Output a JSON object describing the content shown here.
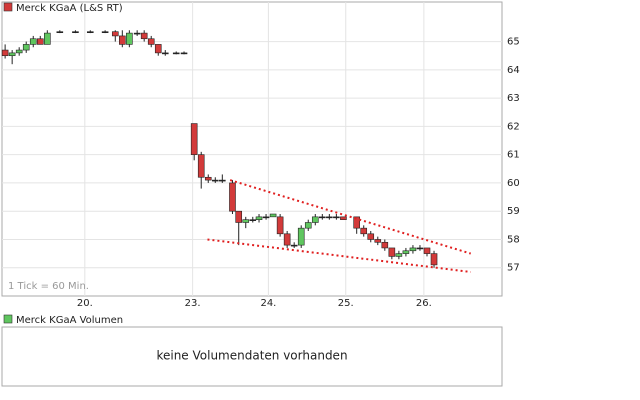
{
  "chart_data": [
    {
      "type": "candlestick",
      "legend": "Merck KGaA (L&S RT)",
      "legend_color": "#d23a3a",
      "note": "1 Tick = 60 Min.",
      "up_color": "#5fc65f",
      "down_color": "#d23a3a",
      "x": [
        0.4,
        1.3,
        2.2,
        3.1,
        4.0,
        4.9,
        5.8,
        7.4,
        9.4,
        11.3,
        13.2,
        14.5,
        15.4,
        16.3,
        17.3,
        18.2,
        19.1,
        20.0,
        20.9,
        22.3,
        23.3,
        24.6,
        25.5,
        26.4,
        27.3,
        28.2,
        29.5,
        30.3,
        31.2,
        32.1,
        32.9,
        33.8,
        34.7,
        35.6,
        36.5,
        37.4,
        38.3,
        39.2,
        40.1,
        41.0,
        41.9,
        42.8,
        43.7,
        45.4,
        46.3,
        47.2,
        48.1,
        49.0,
        49.9,
        50.8,
        51.7,
        52.6,
        53.5,
        54.4,
        55.3
      ],
      "open": [
        64.7,
        64.5,
        64.6,
        64.7,
        64.9,
        65.1,
        64.9,
        65.35,
        65.35,
        65.35,
        65.35,
        65.35,
        65.2,
        64.9,
        65.3,
        65.3,
        65.1,
        64.9,
        64.6,
        64.6,
        64.6,
        62.1,
        61.0,
        60.2,
        60.1,
        60.1,
        60.0,
        59.0,
        58.6,
        58.7,
        58.7,
        58.8,
        58.8,
        58.8,
        58.2,
        57.8,
        57.8,
        58.4,
        58.6,
        58.8,
        58.8,
        58.8,
        58.8,
        58.8,
        58.4,
        58.2,
        58.0,
        57.9,
        57.7,
        57.4,
        57.5,
        57.6,
        57.7,
        57.7,
        57.5
      ],
      "high": [
        64.9,
        64.7,
        64.8,
        65.0,
        65.2,
        65.2,
        65.4,
        65.4,
        65.4,
        65.4,
        65.4,
        65.4,
        65.4,
        65.4,
        65.4,
        65.4,
        65.2,
        64.9,
        64.7,
        64.65,
        64.65,
        62.1,
        61.1,
        60.3,
        60.2,
        60.3,
        60.1,
        59.0,
        58.8,
        58.8,
        58.9,
        58.9,
        58.9,
        58.9,
        58.3,
        57.9,
        58.5,
        58.7,
        58.9,
        58.9,
        58.9,
        58.9,
        58.8,
        58.8,
        58.5,
        58.3,
        58.1,
        58.0,
        57.7,
        57.6,
        57.7,
        57.8,
        57.8,
        57.7,
        57.6
      ],
      "low": [
        64.4,
        64.2,
        64.5,
        64.6,
        64.8,
        64.9,
        64.9,
        65.3,
        65.3,
        65.3,
        65.3,
        65.0,
        64.8,
        64.8,
        65.2,
        65.0,
        64.8,
        64.5,
        64.5,
        64.55,
        64.55,
        60.8,
        59.8,
        60.0,
        60.0,
        60.0,
        58.9,
        57.8,
        58.4,
        58.6,
        58.6,
        58.7,
        58.8,
        58.1,
        57.7,
        57.7,
        57.7,
        58.3,
        58.5,
        58.7,
        58.7,
        58.7,
        58.7,
        58.2,
        58.1,
        57.9,
        57.8,
        57.6,
        57.3,
        57.3,
        57.4,
        57.5,
        57.6,
        57.4,
        57.0
      ],
      "close": [
        64.5,
        64.6,
        64.7,
        64.9,
        65.1,
        64.9,
        65.3,
        65.35,
        65.35,
        65.35,
        65.35,
        65.2,
        64.9,
        65.3,
        65.3,
        65.1,
        64.9,
        64.6,
        64.6,
        64.6,
        64.6,
        61.0,
        60.2,
        60.1,
        60.1,
        60.1,
        59.0,
        58.6,
        58.7,
        58.7,
        58.8,
        58.8,
        58.9,
        58.2,
        57.8,
        57.8,
        58.4,
        58.6,
        58.8,
        58.8,
        58.8,
        58.8,
        58.7,
        58.4,
        58.2,
        58.0,
        57.9,
        57.7,
        57.4,
        57.5,
        57.6,
        57.7,
        57.7,
        57.5,
        57.1
      ],
      "trendlines": [
        {
          "color": "#e02020",
          "x": [
            29.2,
            60.0
          ],
          "y": [
            60.1,
            57.5
          ]
        },
        {
          "color": "#e02020",
          "x": [
            26.3,
            60.0
          ],
          "y": [
            58.0,
            56.85
          ]
        }
      ],
      "xlim": [
        0,
        64
      ],
      "xticks": [
        {
          "value": 10.6,
          "label": "20."
        },
        {
          "value": 24.4,
          "label": "23."
        },
        {
          "value": 34.1,
          "label": "24."
        },
        {
          "value": 44.0,
          "label": "25."
        },
        {
          "value": 54.0,
          "label": "26."
        }
      ],
      "ylim": [
        56,
        66.4
      ],
      "yticks": [
        57,
        58,
        59,
        60,
        61,
        62,
        63,
        64,
        65
      ],
      "grid": true
    },
    {
      "type": "volume",
      "legend": "Merck KGaA Volumen",
      "legend_color": "#5fc65f",
      "message": "keine Volumendaten vorhanden"
    }
  ]
}
